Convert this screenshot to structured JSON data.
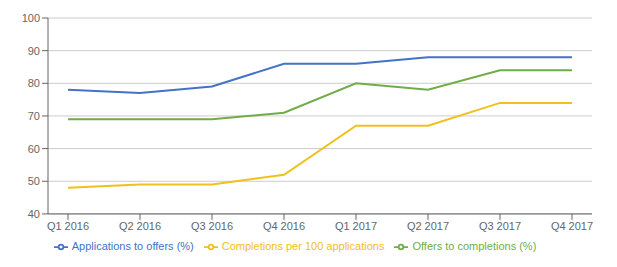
{
  "chart_data": {
    "type": "line",
    "categories": [
      "Q1 2016",
      "Q2 2016",
      "Q3 2016",
      "Q4 2016",
      "Q1 2017",
      "Q2 2017",
      "Q3 2017",
      "Q4 2017"
    ],
    "series": [
      {
        "name": "Completions per 100 applications",
        "color": "#f0c020",
        "values": [
          48,
          49,
          49,
          52,
          67,
          67,
          74,
          74
        ]
      },
      {
        "name": "Applications to offers (%)",
        "color": "#4472c4",
        "values": [
          78,
          77,
          79,
          86,
          86,
          88,
          88,
          88
        ]
      },
      {
        "name": "Offers to completions (%)",
        "color": "#70ad47",
        "values": [
          69,
          69,
          69,
          71,
          80,
          78,
          84,
          84
        ]
      }
    ],
    "ylim": [
      40,
      100
    ],
    "yticks": [
      40,
      50,
      60,
      70,
      80,
      90,
      100
    ],
    "grid": true,
    "legend": "bottom"
  }
}
